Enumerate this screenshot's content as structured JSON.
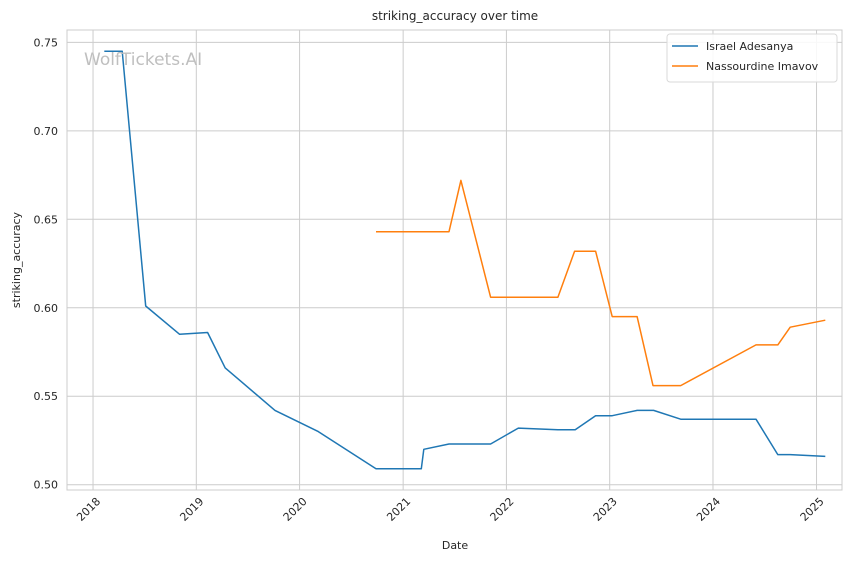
{
  "watermark": "WolfTickets.AI",
  "chart_data": {
    "type": "line",
    "title": "striking_accuracy over time",
    "xlabel": "Date",
    "ylabel": "striking_accuracy",
    "x_ticks": [
      "2018",
      "2019",
      "2020",
      "2021",
      "2022",
      "2023",
      "2024",
      "2025"
    ],
    "y_ticks": [
      "0.50",
      "0.55",
      "0.60",
      "0.65",
      "0.70",
      "0.75"
    ],
    "xlim": [
      "2017-10-01",
      "2025-04-01"
    ],
    "ylim": [
      0.497,
      0.757
    ],
    "grid": true,
    "legend_position": "top-right",
    "colors": {
      "series_1": "#1f77b4",
      "series_2": "#ff7f0e",
      "grid": "#cccccc",
      "axes": "#cccccc"
    },
    "series": [
      {
        "name": "Israel Adesanya",
        "x": [
          "2018-02-10",
          "2018-04-14",
          "2018-07-06",
          "2018-11-03",
          "2019-02-10",
          "2019-04-13",
          "2019-10-06",
          "2020-03-07",
          "2020-09-27",
          "2021-03-06",
          "2021-03-15",
          "2021-06-12",
          "2021-11-06",
          "2022-02-12",
          "2022-07-02",
          "2022-09-01",
          "2022-11-12",
          "2023-01-10",
          "2023-04-08",
          "2023-06-05",
          "2023-09-09",
          "2024-06-01",
          "2024-08-17",
          "2024-09-30",
          "2025-02-01"
        ],
        "values": [
          0.745,
          0.745,
          0.601,
          0.585,
          0.586,
          0.566,
          0.542,
          0.53,
          0.509,
          0.509,
          0.52,
          0.523,
          0.523,
          0.532,
          0.531,
          0.531,
          0.539,
          0.539,
          0.542,
          0.542,
          0.537,
          0.537,
          0.517,
          0.517,
          0.516
        ]
      },
      {
        "name": "Nassourdine Imavov",
        "x": [
          "2020-09-27",
          "2021-06-12",
          "2021-07-24",
          "2021-11-06",
          "2022-07-02",
          "2022-08-30",
          "2022-11-12",
          "2023-01-10",
          "2023-04-08",
          "2023-06-03",
          "2023-09-09",
          "2024-06-01",
          "2024-08-17",
          "2024-09-30",
          "2025-02-01"
        ],
        "values": [
          0.643,
          0.643,
          0.672,
          0.606,
          0.606,
          0.632,
          0.632,
          0.595,
          0.595,
          0.556,
          0.556,
          0.579,
          0.579,
          0.589,
          0.593
        ]
      }
    ]
  }
}
